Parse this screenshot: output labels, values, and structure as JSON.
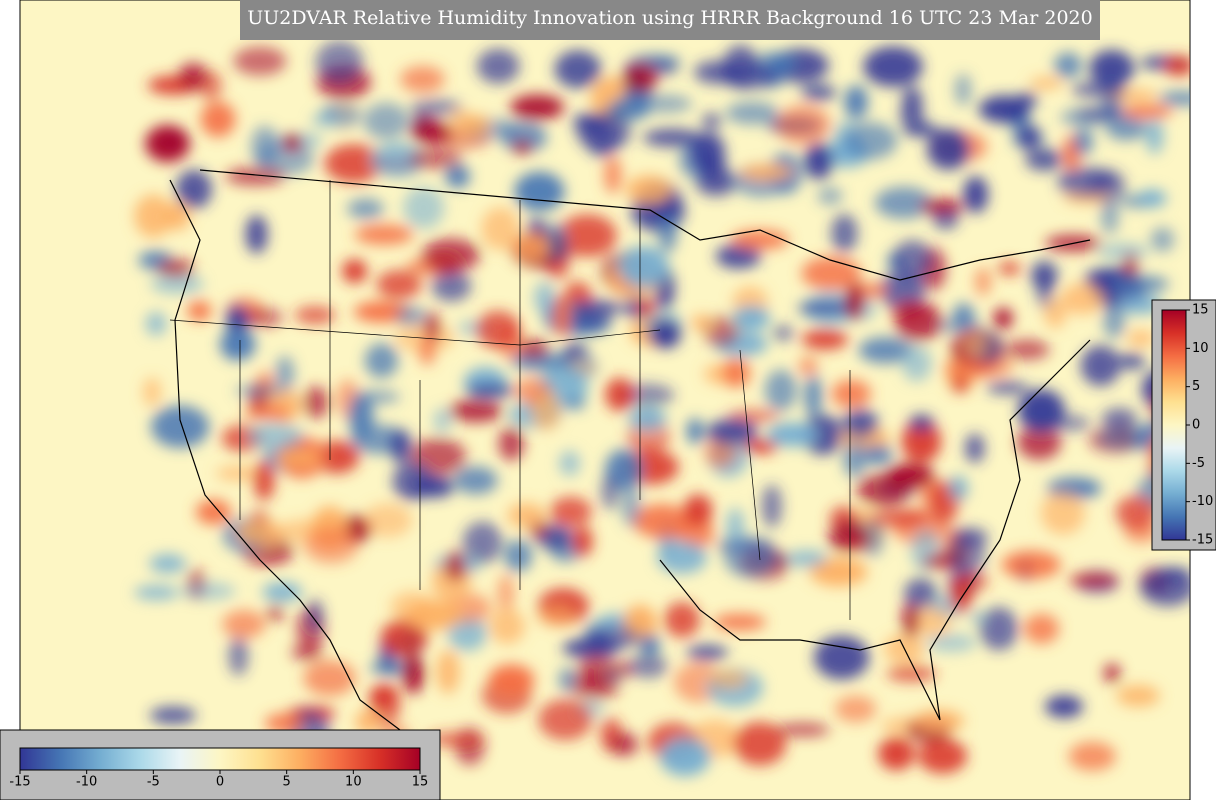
{
  "title": "UU2DVAR Relative Humidity Innovation using HRRR Background 16 UTC 23 Mar 2020",
  "colorbar": {
    "lim": [
      -15,
      15
    ],
    "ticks": [
      -15,
      -10,
      -5,
      0,
      5,
      10,
      15
    ],
    "colors": [
      "#313695",
      "#4575b4",
      "#74add1",
      "#abd9e9",
      "#e9f4f6",
      "#fdf6c4",
      "#fee090",
      "#fdae61",
      "#f46d43",
      "#d73027",
      "#a50026"
    ]
  },
  "colorbar_vertical": {
    "ticks": [
      15,
      10,
      5,
      0,
      -5,
      -10,
      -15
    ]
  }
}
